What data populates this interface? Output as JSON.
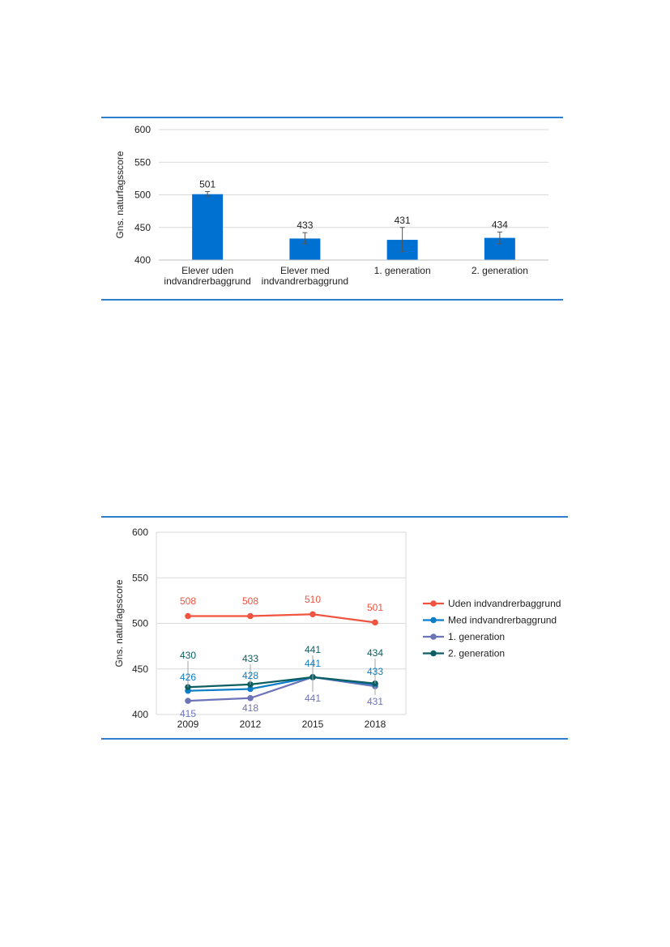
{
  "chart_data": [
    {
      "type": "bar",
      "ylabel": "Gns. naturfagsscore",
      "ylim": [
        400,
        600
      ],
      "yticks": [
        400,
        450,
        500,
        550,
        600
      ],
      "categories": [
        [
          "Elever uden",
          "indvandrerbaggrund"
        ],
        [
          "Elever med",
          "indvandrerbaggrund"
        ],
        [
          "1. generation"
        ],
        [
          "2. generation"
        ]
      ],
      "values": [
        501,
        433,
        431,
        434
      ],
      "error_bars": [
        [
          498,
          505
        ],
        [
          425,
          442
        ],
        [
          413,
          450
        ],
        [
          425,
          443
        ]
      ],
      "bar_color": "#0071d1",
      "grid": true
    },
    {
      "type": "line",
      "ylabel": "Gns. naturfagsscore",
      "ylim": [
        400,
        600
      ],
      "yticks": [
        400,
        450,
        500,
        550,
        600
      ],
      "x": [
        "2009",
        "2012",
        "2015",
        "2018"
      ],
      "legend_position": "right",
      "grid": true,
      "series": [
        {
          "name": "Uden indvandrerbaggrund",
          "values": [
            508,
            508,
            510,
            501
          ],
          "color": "#f0533f"
        },
        {
          "name": "Med indvandrerbaggrund",
          "values": [
            426,
            428,
            441,
            433
          ],
          "color": "#0c7ec8"
        },
        {
          "name": "1. generation",
          "values": [
            415,
            418,
            441,
            431
          ],
          "color": "#6d74b6"
        },
        {
          "name": "2. generation",
          "values": [
            430,
            433,
            441,
            434
          ],
          "color": "#0c5e62"
        }
      ]
    }
  ]
}
